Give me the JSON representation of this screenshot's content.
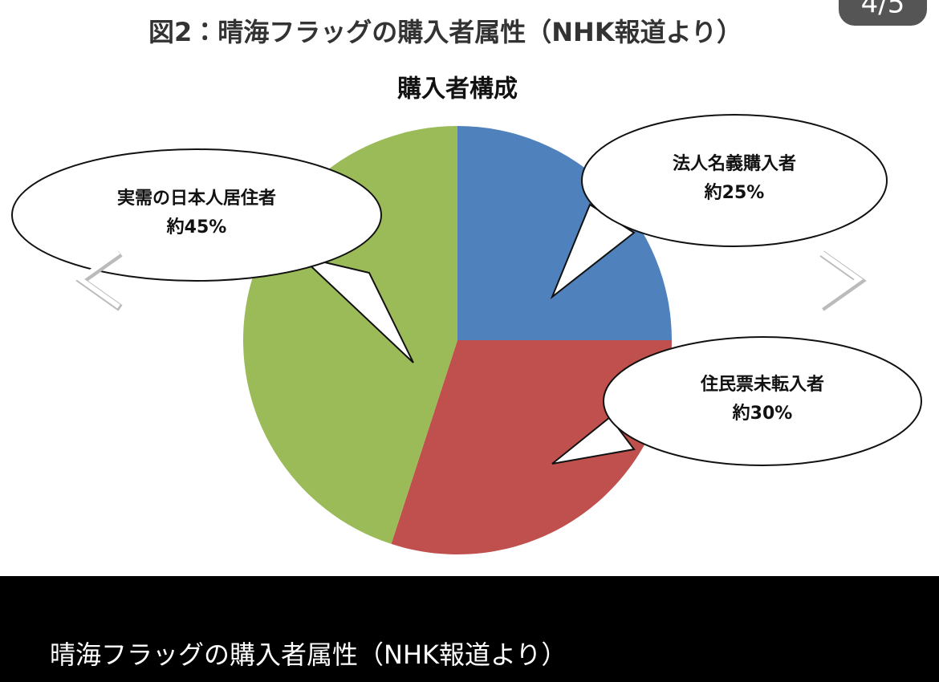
{
  "chart_data": {
    "type": "pie",
    "title": "図2：晴海フラッグの購入者属性（NHK報道より）",
    "subtitle": "購入者構成",
    "categories": [
      "法人名義購入者",
      "住民票未転入者",
      "実需の日本人居住者"
    ],
    "values": [
      25,
      30,
      45
    ],
    "value_labels": [
      "約25%",
      "約30%",
      "約45%"
    ],
    "colors": [
      "#4f81bd",
      "#c0504d",
      "#9bbb59"
    ]
  },
  "viewer": {
    "counter": "4/5",
    "caption": "晴海フラッグの購入者属性（NHK報道より）"
  }
}
